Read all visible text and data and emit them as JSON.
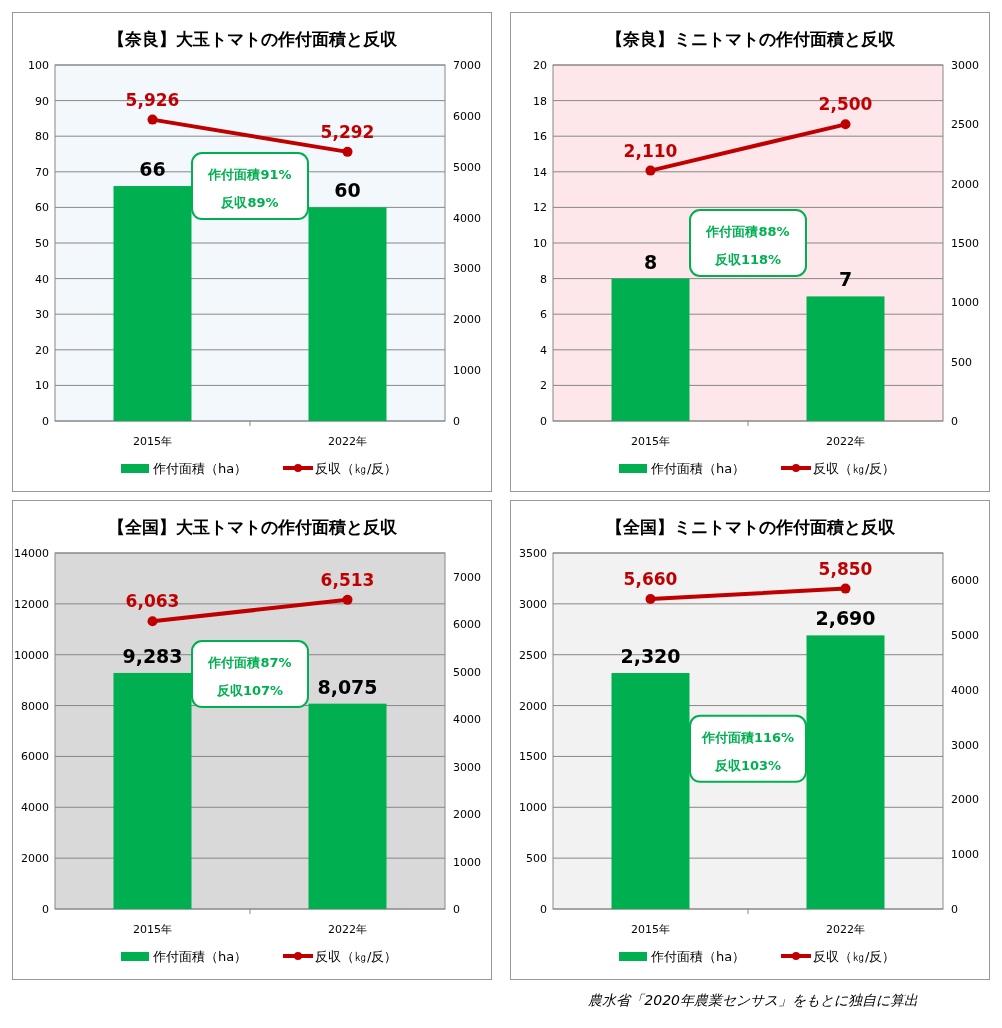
{
  "chart_data": [
    {
      "type": "bar",
      "title": "【奈良】大玉トマトの作付面積と反収",
      "categories": [
        "2015年",
        "2022年"
      ],
      "series": [
        {
          "name": "作付面積（ha）",
          "color": "#00b050",
          "values": [
            66,
            60
          ],
          "value_labels": [
            "66",
            "60"
          ]
        },
        {
          "name": "反収（㎏/反）",
          "type": "line",
          "axis": "y2",
          "color": "#c00000",
          "marker": "circle",
          "values": [
            5926,
            5292
          ],
          "value_labels": [
            "5,926",
            "5,292"
          ]
        }
      ],
      "ylim": [
        0,
        100
      ],
      "yticks": [
        0,
        10,
        20,
        30,
        40,
        50,
        60,
        70,
        80,
        90,
        100
      ],
      "y2lim": [
        0,
        7000
      ],
      "y2ticks": [
        0,
        1000,
        2000,
        3000,
        4000,
        5000,
        6000,
        7000
      ],
      "grid": "y",
      "legend": "bottom",
      "annotations": [
        "作付面積91%",
        "反収89%"
      ]
    },
    {
      "type": "bar",
      "title": "【奈良】ミニトマトの作付面積と反収",
      "categories": [
        "2015年",
        "2022年"
      ],
      "series": [
        {
          "name": "作付面積（ha）",
          "color": "#00b050",
          "values": [
            8,
            7
          ],
          "value_labels": [
            "8",
            "7"
          ]
        },
        {
          "name": "反収（㎏/反）",
          "type": "line",
          "axis": "y2",
          "color": "#c00000",
          "marker": "circle",
          "values": [
            2110,
            2500
          ],
          "value_labels": [
            "2,110",
            "2,500"
          ]
        }
      ],
      "ylim": [
        0,
        20
      ],
      "yticks": [
        0,
        2,
        4,
        6,
        8,
        10,
        12,
        14,
        16,
        18,
        20
      ],
      "y2lim": [
        0,
        3000
      ],
      "y2ticks": [
        0,
        500,
        1000,
        1500,
        2000,
        2500,
        3000
      ],
      "grid": "y",
      "legend": "bottom",
      "annotations": [
        "作付面積88%",
        "反収118%"
      ]
    },
    {
      "type": "bar",
      "title": "【全国】大玉トマトの作付面積と反収",
      "categories": [
        "2015年",
        "2022年"
      ],
      "series": [
        {
          "name": "作付面積（ha）",
          "color": "#00b050",
          "values": [
            9283,
            8075
          ],
          "value_labels": [
            "9,283",
            "8,075"
          ]
        },
        {
          "name": "反収（㎏/反）",
          "type": "line",
          "axis": "y2",
          "color": "#c00000",
          "marker": "circle",
          "values": [
            6063,
            6513
          ],
          "value_labels": [
            "6,063",
            "6,513"
          ]
        }
      ],
      "ylim": [
        0,
        14000
      ],
      "yticks": [
        0,
        2000,
        4000,
        6000,
        8000,
        10000,
        12000,
        14000
      ],
      "y2lim": [
        0,
        7500
      ],
      "y2ticks": [
        0,
        1000,
        2000,
        3000,
        4000,
        5000,
        6000,
        7000
      ],
      "grid": "y",
      "legend": "bottom",
      "annotations": [
        "作付面積87%",
        "反収107%"
      ]
    },
    {
      "type": "bar",
      "title": "【全国】ミニトマトの作付面積と反収",
      "categories": [
        "2015年",
        "2022年"
      ],
      "series": [
        {
          "name": "作付面積（ha）",
          "color": "#00b050",
          "values": [
            2320,
            2690
          ],
          "value_labels": [
            "2,320",
            "2,690"
          ]
        },
        {
          "name": "反収（㎏/反）",
          "type": "line",
          "axis": "y2",
          "color": "#c00000",
          "marker": "circle",
          "values": [
            5660,
            5850
          ],
          "value_labels": [
            "5,660",
            "5,850"
          ]
        }
      ],
      "ylim": [
        0,
        3500
      ],
      "yticks": [
        0,
        500,
        1000,
        1500,
        2000,
        2500,
        3000,
        3500
      ],
      "y2lim": [
        0,
        6500
      ],
      "y2ticks": [
        0,
        1000,
        2000,
        3000,
        4000,
        5000,
        6000
      ],
      "grid": "y",
      "legend": "bottom",
      "annotations": [
        "作付面積116%",
        "反収103%",
        "農水省「2020年農業センサス」をもとに独自に算出"
      ]
    }
  ]
}
